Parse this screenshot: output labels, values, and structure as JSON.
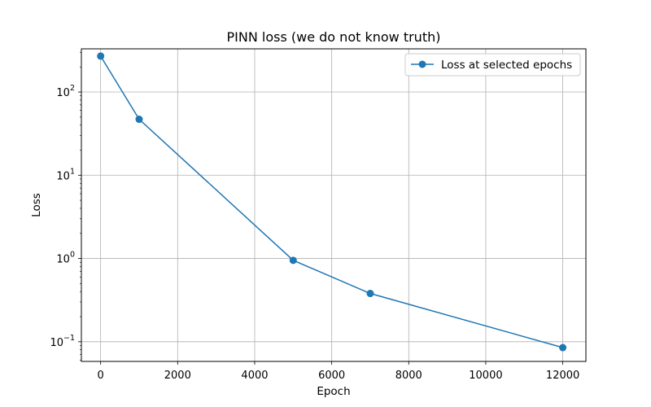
{
  "chart_data": {
    "type": "line",
    "title": "PINN loss (we do not know truth)",
    "xlabel": "Epoch",
    "ylabel": "Loss",
    "x": [
      0,
      1000,
      5000,
      7000,
      12000
    ],
    "series": [
      {
        "name": "Loss at selected epochs",
        "values": [
          270,
          47,
          0.95,
          0.38,
          0.085
        ],
        "color": "#1f77b4",
        "marker": "circle"
      }
    ],
    "xlim": [
      -500,
      12600
    ],
    "ylim": [
      0.058,
      330
    ],
    "yscale": "log",
    "x_ticks": [
      0,
      2000,
      4000,
      6000,
      8000,
      10000,
      12000
    ],
    "x_tick_labels": [
      "0",
      "2000",
      "4000",
      "6000",
      "8000",
      "10000",
      "12000"
    ],
    "y_ticks": [
      0.1,
      1,
      10,
      100
    ],
    "y_tick_labels": [
      {
        "base": "10",
        "exp": "−1"
      },
      {
        "base": "10",
        "exp": "0"
      },
      {
        "base": "10",
        "exp": "1"
      },
      {
        "base": "10",
        "exp": "2"
      }
    ],
    "grid": true,
    "legend": "top-right"
  }
}
